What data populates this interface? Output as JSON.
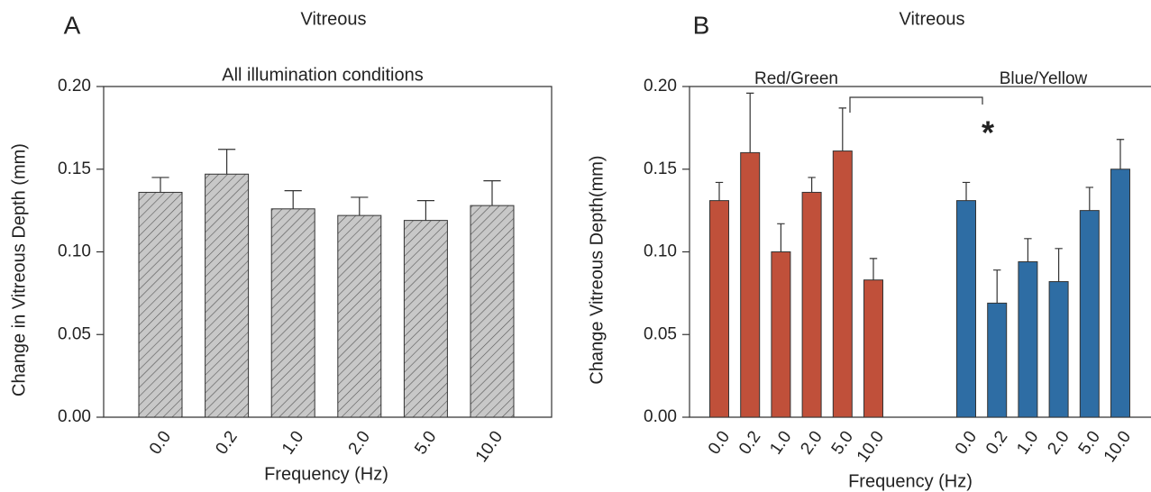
{
  "chart_data": [
    {
      "type": "bar",
      "panel_label": "A",
      "title": "Vitreous",
      "subtitle": "All illumination conditions",
      "y_label": "Change in Vitreous Depth (mm)",
      "x_label": "Frequency (Hz)",
      "categories": [
        "0.0",
        "0.2",
        "1.0",
        "2.0",
        "5.0",
        "10.0"
      ],
      "values": [
        0.136,
        0.147,
        0.126,
        0.122,
        0.119,
        0.128
      ],
      "errors": [
        0.009,
        0.015,
        0.011,
        0.011,
        0.012,
        0.015
      ],
      "color": "#c8c8c8",
      "hatch": true,
      "ylim": [
        0,
        0.2
      ],
      "yticks": [
        {
          "value": 0,
          "label": "0.00"
        },
        {
          "value": 0.05,
          "label": "0.05"
        },
        {
          "value": 0.1,
          "label": "0.10"
        },
        {
          "value": 0.15,
          "label": "0.15"
        },
        {
          "value": 0.2,
          "label": "0.20"
        }
      ]
    },
    {
      "type": "grouped_bar",
      "panel_label": "B",
      "title": "Vitreous",
      "y_label": "Change Vitreous Depth(mm)",
      "x_label": "Frequency (Hz)",
      "categories": [
        "0.0",
        "0.2",
        "1.0",
        "2.0",
        "5.0",
        "10.0"
      ],
      "series": [
        {
          "name": "Red/Green",
          "color": "#c0503a",
          "values": [
            0.131,
            0.16,
            0.1,
            0.136,
            0.161,
            0.083
          ],
          "errors": [
            0.011,
            0.036,
            0.017,
            0.009,
            0.026,
            0.013
          ]
        },
        {
          "name": "Blue/Yellow",
          "color": "#2e6da4",
          "values": [
            0.131,
            0.069,
            0.094,
            0.082,
            0.125,
            0.15
          ],
          "errors": [
            0.011,
            0.02,
            0.014,
            0.02,
            0.014,
            0.018
          ]
        }
      ],
      "annotation": "*",
      "ylim": [
        0,
        0.2
      ],
      "yticks": [
        {
          "value": 0,
          "label": "0.00"
        },
        {
          "value": 0.05,
          "label": "0.05"
        },
        {
          "value": 0.1,
          "label": "0.10"
        },
        {
          "value": 0.15,
          "label": "0.15"
        },
        {
          "value": 0.2,
          "label": "0.20"
        }
      ]
    }
  ]
}
